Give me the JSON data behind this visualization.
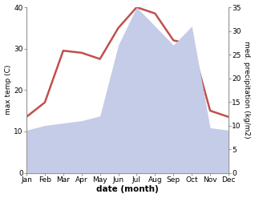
{
  "months": [
    "Jan",
    "Feb",
    "Mar",
    "Apr",
    "May",
    "Jun",
    "Jul",
    "Aug",
    "Sep",
    "Oct",
    "Nov",
    "Dec"
  ],
  "temperature": [
    13.5,
    17,
    29.5,
    29,
    27.5,
    35,
    40,
    38.5,
    32,
    31,
    15,
    13.5
  ],
  "precipitation": [
    9,
    10,
    10.5,
    11,
    12,
    27,
    35,
    31,
    27,
    31,
    9.5,
    9
  ],
  "temp_color": "#c0504d",
  "precip_fill_color": "#c5cce8",
  "temp_ylim": [
    0,
    40
  ],
  "precip_ylim": [
    0,
    35
  ],
  "temp_yticks": [
    0,
    10,
    20,
    30,
    40
  ],
  "precip_yticks": [
    0,
    5,
    10,
    15,
    20,
    25,
    30,
    35
  ],
  "ylabel_left": "max temp (C)",
  "ylabel_right": "med. precipitation (kg/m2)",
  "xlabel": "date (month)",
  "background_color": "#ffffff",
  "spine_color": "#999999",
  "label_fontsize": 6.5,
  "tick_fontsize": 6.5,
  "xlabel_fontsize": 7.5
}
